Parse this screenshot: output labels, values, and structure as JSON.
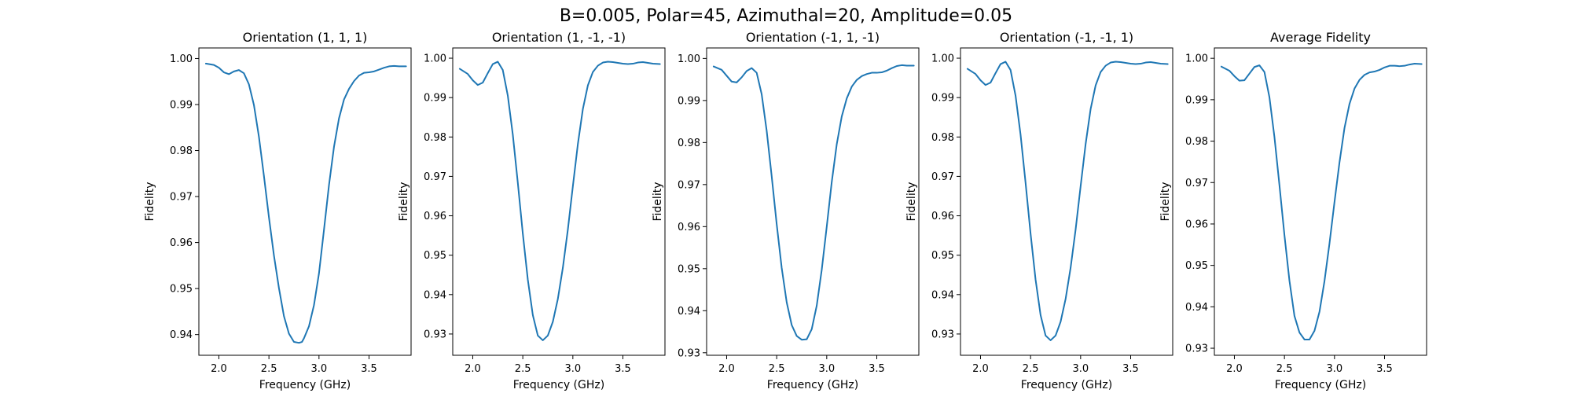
{
  "figure": {
    "suptitle": "B=0.005, Polar=45, Azimuthal=20, Amplitude=0.05"
  },
  "style": {
    "line_color": "#1f77b4"
  },
  "chart_data": [
    {
      "type": "line",
      "title": "Orientation (1, 1, 1)",
      "xlabel": "Frequency (GHz)",
      "ylabel": "Fidelity",
      "xlim": [
        1.8,
        3.92
      ],
      "ylim": [
        0.9355,
        1.0023
      ],
      "x_ticks": [
        2.0,
        2.5,
        3.0,
        3.5
      ],
      "x_tick_labels": [
        "2.0",
        "2.5",
        "3.0",
        "3.5"
      ],
      "y_ticks": [
        0.94,
        0.95,
        0.96,
        0.97,
        0.98,
        0.99,
        1.0
      ],
      "y_tick_labels": [
        "0.94",
        "0.95",
        "0.96",
        "0.97",
        "0.98",
        "0.99",
        "1.00"
      ],
      "grid": false,
      "series": [
        {
          "x": [
            1.87,
            1.95,
            2.0,
            2.05,
            2.1,
            2.15,
            2.2,
            2.25,
            2.3,
            2.35,
            2.4,
            2.45,
            2.5,
            2.55,
            2.6,
            2.65,
            2.7,
            2.75,
            2.8,
            2.83,
            2.85,
            2.9,
            2.95,
            3.0,
            3.05,
            3.1,
            3.15,
            3.2,
            3.25,
            3.3,
            3.35,
            3.4,
            3.45,
            3.5,
            3.55,
            3.6,
            3.65,
            3.7,
            3.75,
            3.8,
            3.87
          ],
          "y": [
            0.9989,
            0.9986,
            0.998,
            0.997,
            0.9966,
            0.9972,
            0.9975,
            0.9968,
            0.9944,
            0.9899,
            0.983,
            0.9745,
            0.9655,
            0.9572,
            0.9501,
            0.944,
            0.9402,
            0.9384,
            0.9382,
            0.9384,
            0.9392,
            0.9418,
            0.9464,
            0.9533,
            0.9628,
            0.9725,
            0.9808,
            0.987,
            0.9911,
            0.9934,
            0.9951,
            0.9963,
            0.9969,
            0.997,
            0.9972,
            0.9976,
            0.998,
            0.9983,
            0.9984,
            0.9983,
            0.9983
          ]
        }
      ]
    },
    {
      "type": "line",
      "title": "Orientation (1, -1, -1)",
      "xlabel": "Frequency (GHz)",
      "ylabel": "Fidelity",
      "xlim": [
        1.8,
        3.92
      ],
      "ylim": [
        0.9246,
        1.0026
      ],
      "x_ticks": [
        2.0,
        2.5,
        3.0,
        3.5
      ],
      "x_tick_labels": [
        "2.0",
        "2.5",
        "3.0",
        "3.5"
      ],
      "y_ticks": [
        0.93,
        0.94,
        0.95,
        0.96,
        0.97,
        0.98,
        0.99,
        1.0
      ],
      "y_tick_labels": [
        "0.93",
        "0.94",
        "0.95",
        "0.96",
        "0.97",
        "0.98",
        "0.99",
        "1.00"
      ],
      "grid": false,
      "series": [
        {
          "x": [
            1.87,
            1.95,
            2.0,
            2.05,
            2.1,
            2.15,
            2.2,
            2.25,
            2.3,
            2.35,
            2.4,
            2.45,
            2.5,
            2.55,
            2.6,
            2.65,
            2.7,
            2.75,
            2.8,
            2.85,
            2.9,
            2.95,
            3.0,
            3.05,
            3.1,
            3.15,
            3.2,
            3.25,
            3.3,
            3.35,
            3.4,
            3.45,
            3.5,
            3.55,
            3.6,
            3.65,
            3.7,
            3.75,
            3.8,
            3.87
          ],
          "y": [
            0.9973,
            0.996,
            0.9944,
            0.9932,
            0.9938,
            0.9962,
            0.9985,
            0.9991,
            0.997,
            0.9905,
            0.9806,
            0.9684,
            0.9555,
            0.9438,
            0.9348,
            0.9296,
            0.9284,
            0.9296,
            0.9331,
            0.9389,
            0.9468,
            0.9565,
            0.9675,
            0.9782,
            0.9871,
            0.9931,
            0.9965,
            0.9981,
            0.9989,
            0.9991,
            0.999,
            0.9988,
            0.9986,
            0.9985,
            0.9986,
            0.9989,
            0.999,
            0.9988,
            0.9986,
            0.9985
          ]
        }
      ]
    },
    {
      "type": "line",
      "title": "Orientation (-1, 1, -1)",
      "xlabel": "Frequency (GHz)",
      "ylabel": "Fidelity",
      "xlim": [
        1.8,
        3.92
      ],
      "ylim": [
        0.9294,
        1.0025
      ],
      "x_ticks": [
        2.0,
        2.5,
        3.0,
        3.5
      ],
      "x_tick_labels": [
        "2.0",
        "2.5",
        "3.0",
        "3.5"
      ],
      "y_ticks": [
        0.93,
        0.94,
        0.95,
        0.96,
        0.97,
        0.98,
        0.99,
        1.0
      ],
      "y_tick_labels": [
        "0.93",
        "0.94",
        "0.95",
        "0.96",
        "0.97",
        "0.98",
        "0.99",
        "1.00"
      ],
      "grid": false,
      "series": [
        {
          "x": [
            1.87,
            1.95,
            2.0,
            2.05,
            2.1,
            2.15,
            2.2,
            2.25,
            2.3,
            2.35,
            2.4,
            2.45,
            2.5,
            2.55,
            2.6,
            2.65,
            2.7,
            2.75,
            2.8,
            2.85,
            2.9,
            2.95,
            3.0,
            3.05,
            3.1,
            3.15,
            3.2,
            3.25,
            3.3,
            3.35,
            3.4,
            3.45,
            3.5,
            3.55,
            3.6,
            3.65,
            3.7,
            3.75,
            3.8,
            3.87
          ],
          "y": [
            0.9981,
            0.9973,
            0.9959,
            0.9945,
            0.9943,
            0.9955,
            0.997,
            0.9977,
            0.9966,
            0.9915,
            0.9828,
            0.972,
            0.9606,
            0.9502,
            0.942,
            0.9366,
            0.934,
            0.9331,
            0.9332,
            0.9356,
            0.9412,
            0.9497,
            0.96,
            0.9706,
            0.9796,
            0.9862,
            0.9905,
            0.9933,
            0.9949,
            0.9958,
            0.9963,
            0.9966,
            0.9966,
            0.9967,
            0.9971,
            0.9977,
            0.9982,
            0.9984,
            0.9983,
            0.9983
          ]
        }
      ]
    },
    {
      "type": "line",
      "title": "Orientation (-1, -1, 1)",
      "xlabel": "Frequency (GHz)",
      "ylabel": "Fidelity",
      "xlim": [
        1.8,
        3.92
      ],
      "ylim": [
        0.9246,
        1.0026
      ],
      "x_ticks": [
        2.0,
        2.5,
        3.0,
        3.5
      ],
      "x_tick_labels": [
        "2.0",
        "2.5",
        "3.0",
        "3.5"
      ],
      "y_ticks": [
        0.93,
        0.94,
        0.95,
        0.96,
        0.97,
        0.98,
        0.99,
        1.0
      ],
      "y_tick_labels": [
        "0.93",
        "0.94",
        "0.95",
        "0.96",
        "0.97",
        "0.98",
        "0.99",
        "1.00"
      ],
      "grid": false,
      "series": [
        {
          "x": [
            1.87,
            1.95,
            2.0,
            2.05,
            2.1,
            2.15,
            2.2,
            2.25,
            2.3,
            2.35,
            2.4,
            2.45,
            2.5,
            2.55,
            2.6,
            2.65,
            2.7,
            2.75,
            2.8,
            2.85,
            2.9,
            2.95,
            3.0,
            3.05,
            3.1,
            3.15,
            3.2,
            3.25,
            3.3,
            3.35,
            3.4,
            3.45,
            3.5,
            3.55,
            3.6,
            3.65,
            3.7,
            3.75,
            3.8,
            3.87
          ],
          "y": [
            0.9973,
            0.996,
            0.9944,
            0.9932,
            0.9938,
            0.9962,
            0.9985,
            0.9991,
            0.997,
            0.9905,
            0.9806,
            0.9684,
            0.9555,
            0.9438,
            0.9348,
            0.9296,
            0.9284,
            0.9296,
            0.9331,
            0.9389,
            0.9468,
            0.9565,
            0.9675,
            0.9782,
            0.9871,
            0.9931,
            0.9965,
            0.9981,
            0.9989,
            0.9991,
            0.999,
            0.9988,
            0.9986,
            0.9985,
            0.9986,
            0.9989,
            0.999,
            0.9988,
            0.9986,
            0.9985
          ]
        }
      ]
    },
    {
      "type": "line",
      "title": "Average Fidelity",
      "xlabel": "Frequency (GHz)",
      "ylabel": "Fidelity",
      "xlim": [
        1.8,
        3.92
      ],
      "ylim": [
        0.9283,
        1.0025
      ],
      "x_ticks": [
        2.0,
        2.5,
        3.0,
        3.5
      ],
      "x_tick_labels": [
        "2.0",
        "2.5",
        "3.0",
        "3.5"
      ],
      "y_ticks": [
        0.93,
        0.94,
        0.95,
        0.96,
        0.97,
        0.98,
        0.99,
        1.0
      ],
      "y_tick_labels": [
        "0.93",
        "0.94",
        "0.95",
        "0.96",
        "0.97",
        "0.98",
        "0.99",
        "1.00"
      ],
      "grid": false,
      "series": [
        {
          "x": [
            1.87,
            1.95,
            2.0,
            2.05,
            2.1,
            2.15,
            2.2,
            2.25,
            2.3,
            2.35,
            2.4,
            2.45,
            2.5,
            2.55,
            2.6,
            2.65,
            2.7,
            2.75,
            2.8,
            2.85,
            2.9,
            2.95,
            3.0,
            3.05,
            3.1,
            3.15,
            3.2,
            3.25,
            3.3,
            3.35,
            3.4,
            3.45,
            3.5,
            3.55,
            3.6,
            3.65,
            3.7,
            3.75,
            3.8,
            3.87
          ],
          "y": [
            0.998,
            0.997,
            0.9957,
            0.9946,
            0.9947,
            0.9963,
            0.9979,
            0.9983,
            0.9967,
            0.9906,
            0.981,
            0.9694,
            0.9573,
            0.9463,
            0.9378,
            0.9338,
            0.9321,
            0.9321,
            0.9342,
            0.9388,
            0.9462,
            0.9553,
            0.9653,
            0.9749,
            0.9832,
            0.989,
            0.9927,
            0.9948,
            0.996,
            0.9966,
            0.9968,
            0.9972,
            0.9978,
            0.9982,
            0.9982,
            0.9981,
            0.9982,
            0.9985,
            0.9987,
            0.9986
          ]
        }
      ]
    }
  ]
}
